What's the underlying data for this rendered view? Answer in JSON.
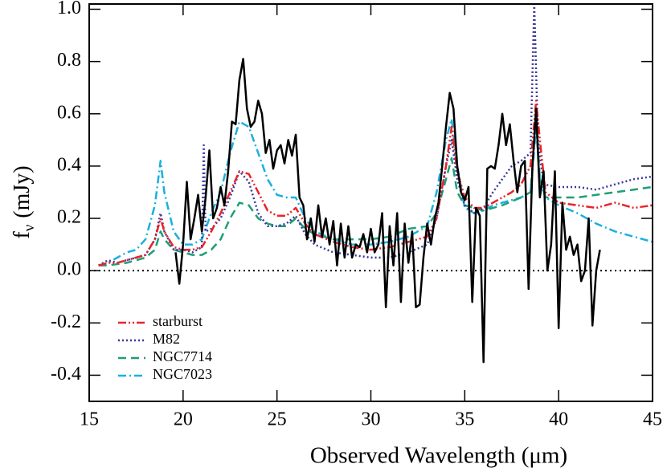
{
  "chart_data": {
    "type": "line",
    "x_label": "Observed Wavelength (μm)",
    "y_label": {
      "main": "f",
      "sub": "ν",
      "unit": "(mJy)"
    },
    "xlim": [
      15,
      45
    ],
    "ylim": [
      -0.5,
      1.02
    ],
    "xticks": [
      15,
      20,
      25,
      30,
      35,
      40,
      45
    ],
    "yticks": [
      {
        "value": -0.4,
        "label": "-0.4"
      },
      {
        "value": -0.2,
        "label": "-0.2"
      },
      {
        "value": 0,
        "label": "0.0"
      },
      {
        "value": 0.2,
        "label": "0.2"
      },
      {
        "value": 0.4,
        "label": "0.4"
      },
      {
        "value": 0.6,
        "label": "0.6"
      },
      {
        "value": 0.8,
        "label": "0.8"
      },
      {
        "value": 1.0,
        "label": "1.0"
      }
    ],
    "hline": 0,
    "legend": "lower left",
    "series": [
      {
        "color": "#000000",
        "dash": "solid",
        "x": [
          19.6,
          19.8,
          20.0,
          20.2,
          20.4,
          20.6,
          20.8,
          21.0,
          21.2,
          21.4,
          21.6,
          21.8,
          22.0,
          22.2,
          22.4,
          22.6,
          22.8,
          23.0,
          23.2,
          23.4,
          23.6,
          23.8,
          24.0,
          24.2,
          24.4,
          24.6,
          24.8,
          25.0,
          25.2,
          25.4,
          25.6,
          25.8,
          26.0,
          26.2,
          26.4,
          26.6,
          26.8,
          27.0,
          27.2,
          27.4,
          27.6,
          27.8,
          28.0,
          28.2,
          28.4,
          28.6,
          28.8,
          29.0,
          29.2,
          29.4,
          29.6,
          29.8,
          30.0,
          30.2,
          30.4,
          30.6,
          30.8,
          31.0,
          31.2,
          31.4,
          31.6,
          31.8,
          32.0,
          32.2,
          32.4,
          32.6,
          32.8,
          33.0,
          33.2,
          33.4,
          33.6,
          33.8,
          34.0,
          34.2,
          34.4,
          34.6,
          34.8,
          35.0,
          35.2,
          35.4,
          35.6,
          35.8,
          36.0,
          36.2,
          36.4,
          36.6,
          36.8,
          37.0,
          37.2,
          37.4,
          37.6,
          37.8,
          38.0,
          38.2,
          38.4,
          38.6,
          38.8,
          39.0,
          39.2,
          39.4,
          39.6,
          39.8,
          40.0,
          40.2,
          40.4,
          40.6,
          40.8,
          41.0,
          41.2,
          41.4,
          41.6,
          41.8,
          42.0,
          42.2
        ],
        "values": [
          0.07,
          -0.05,
          0.1,
          0.34,
          0.12,
          0.2,
          0.29,
          0.15,
          0.28,
          0.46,
          0.2,
          0.24,
          0.32,
          0.25,
          0.38,
          0.57,
          0.56,
          0.73,
          0.81,
          0.62,
          0.55,
          0.57,
          0.65,
          0.6,
          0.45,
          0.5,
          0.39,
          0.46,
          0.48,
          0.41,
          0.5,
          0.44,
          0.52,
          0.28,
          0.25,
          0.12,
          0.2,
          0.11,
          0.25,
          0.13,
          0.2,
          0.1,
          0.19,
          0.02,
          0.18,
          0.05,
          0.17,
          0.05,
          0.1,
          0.09,
          0.14,
          0.07,
          0.16,
          0.07,
          0.1,
          0.22,
          -0.14,
          0.17,
          0.02,
          0.22,
          -0.12,
          0.18,
          0.03,
          0.15,
          -0.14,
          -0.13,
          0.05,
          0.18,
          0.1,
          0.2,
          0.26,
          0.4,
          0.55,
          0.68,
          0.62,
          0.4,
          0.3,
          0.27,
          0.32,
          -0.12,
          0.24,
          0.21,
          -0.35,
          0.39,
          0.4,
          0.39,
          0.48,
          0.6,
          0.48,
          0.56,
          0.42,
          0.3,
          0.4,
          0.42,
          -0.07,
          0.39,
          0.62,
          0.28,
          0.38,
          0.0,
          0.1,
          0.38,
          -0.22,
          0.26,
          0.08,
          0.13,
          0.06,
          0.1,
          -0.04,
          0.0,
          0.2,
          -0.21,
          0.0,
          0.08
        ]
      },
      {
        "name": "starburst",
        "color": "#e8242a",
        "dash": "dashdotdot",
        "x": [
          15.5,
          16,
          16.5,
          17,
          17.5,
          18,
          18.5,
          18.8,
          19,
          19.5,
          20,
          20.5,
          21,
          21.5,
          22,
          22.5,
          23,
          23.5,
          24,
          24.5,
          25,
          25.5,
          26,
          26.5,
          27,
          28,
          29,
          30,
          31,
          32,
          33,
          33.5,
          34,
          34.3,
          34.6,
          35,
          35.5,
          36,
          36.5,
          37,
          37.5,
          38,
          38.5,
          38.8,
          39,
          39.3,
          40,
          41,
          42,
          43,
          44,
          45
        ],
        "values": [
          0.02,
          0.03,
          0.03,
          0.04,
          0.05,
          0.06,
          0.12,
          0.2,
          0.15,
          0.09,
          0.08,
          0.08,
          0.09,
          0.15,
          0.22,
          0.3,
          0.38,
          0.37,
          0.3,
          0.23,
          0.21,
          0.21,
          0.24,
          0.18,
          0.14,
          0.11,
          0.09,
          0.08,
          0.09,
          0.11,
          0.13,
          0.2,
          0.4,
          0.55,
          0.38,
          0.28,
          0.24,
          0.24,
          0.26,
          0.28,
          0.3,
          0.33,
          0.4,
          0.65,
          0.5,
          0.3,
          0.26,
          0.25,
          0.24,
          0.26,
          0.24,
          0.25
        ]
      },
      {
        "name": "M82",
        "color": "#3a3a9a",
        "dash": "dotted",
        "x": [
          15.5,
          16,
          16.5,
          17,
          18,
          18.5,
          18.8,
          19,
          19.5,
          20,
          20.5,
          21,
          21.1,
          21.2,
          21.5,
          22,
          22.5,
          23,
          23.5,
          24,
          24.5,
          25,
          25.5,
          26,
          26.5,
          27,
          28,
          29,
          30,
          31,
          32,
          33,
          33.5,
          34,
          34.3,
          34.6,
          35,
          35.5,
          36,
          36.5,
          37,
          37.5,
          38,
          38.5,
          38.7,
          38.9,
          39.2,
          40,
          41,
          42,
          43,
          44,
          45
        ],
        "values": [
          0.02,
          0.04,
          0.03,
          0.04,
          0.06,
          0.12,
          0.22,
          0.15,
          0.08,
          0.08,
          0.07,
          0.09,
          0.48,
          0.15,
          0.16,
          0.2,
          0.28,
          0.38,
          0.34,
          0.22,
          0.17,
          0.17,
          0.18,
          0.21,
          0.14,
          0.1,
          0.07,
          0.06,
          0.05,
          0.05,
          0.07,
          0.1,
          0.2,
          0.4,
          0.5,
          0.35,
          0.25,
          0.22,
          0.24,
          0.3,
          0.35,
          0.4,
          0.42,
          0.45,
          1.02,
          0.5,
          0.33,
          0.32,
          0.32,
          0.31,
          0.33,
          0.35,
          0.36
        ]
      },
      {
        "name": "NGC7714",
        "color": "#1e9e78",
        "dash": "dashed",
        "x": [
          15.5,
          16,
          17,
          18,
          18.5,
          18.8,
          19,
          19.5,
          20,
          20.5,
          21,
          21.5,
          22,
          22.5,
          23,
          23.5,
          24,
          24.5,
          25,
          25.5,
          26,
          26.5,
          27,
          28,
          29,
          30,
          31,
          32,
          33,
          33.5,
          34,
          34.3,
          34.6,
          35,
          36,
          37,
          38,
          38.5,
          38.8,
          39,
          39.3,
          40,
          41,
          42,
          43,
          44,
          45
        ],
        "values": [
          0.02,
          0.02,
          0.03,
          0.05,
          0.08,
          0.15,
          0.12,
          0.08,
          0.07,
          0.06,
          0.06,
          0.08,
          0.12,
          0.2,
          0.26,
          0.25,
          0.2,
          0.18,
          0.17,
          0.17,
          0.2,
          0.16,
          0.14,
          0.12,
          0.12,
          0.12,
          0.13,
          0.16,
          0.17,
          0.22,
          0.35,
          0.43,
          0.3,
          0.25,
          0.23,
          0.25,
          0.28,
          0.3,
          0.58,
          0.35,
          0.28,
          0.28,
          0.28,
          0.29,
          0.3,
          0.31,
          0.32
        ]
      },
      {
        "name": "NGC7023",
        "color": "#1ab0e0",
        "dash": "dashdot",
        "x": [
          15.5,
          16,
          16.5,
          17,
          17.5,
          18,
          18.5,
          18.8,
          19,
          19.5,
          20,
          20.5,
          21,
          21.5,
          22,
          22.5,
          23,
          23.5,
          24,
          24.5,
          25,
          25.5,
          26,
          26.5,
          27,
          28,
          29,
          30,
          31,
          32,
          33,
          33.5,
          34,
          34.3,
          34.6,
          35,
          35.5,
          36,
          36.5,
          37,
          37.5,
          38,
          38.5,
          38.8,
          39,
          39.3,
          40,
          41,
          42,
          43,
          44,
          45
        ],
        "values": [
          0.02,
          0.03,
          0.05,
          0.07,
          0.08,
          0.12,
          0.25,
          0.42,
          0.3,
          0.15,
          0.1,
          0.1,
          0.12,
          0.22,
          0.3,
          0.45,
          0.57,
          0.55,
          0.45,
          0.35,
          0.29,
          0.28,
          0.28,
          0.2,
          0.15,
          0.12,
          0.1,
          0.1,
          0.11,
          0.13,
          0.17,
          0.3,
          0.5,
          0.58,
          0.4,
          0.24,
          0.22,
          0.23,
          0.25,
          0.26,
          0.27,
          0.28,
          0.3,
          0.55,
          0.35,
          0.28,
          0.25,
          0.22,
          0.18,
          0.15,
          0.13,
          0.11
        ]
      }
    ]
  }
}
